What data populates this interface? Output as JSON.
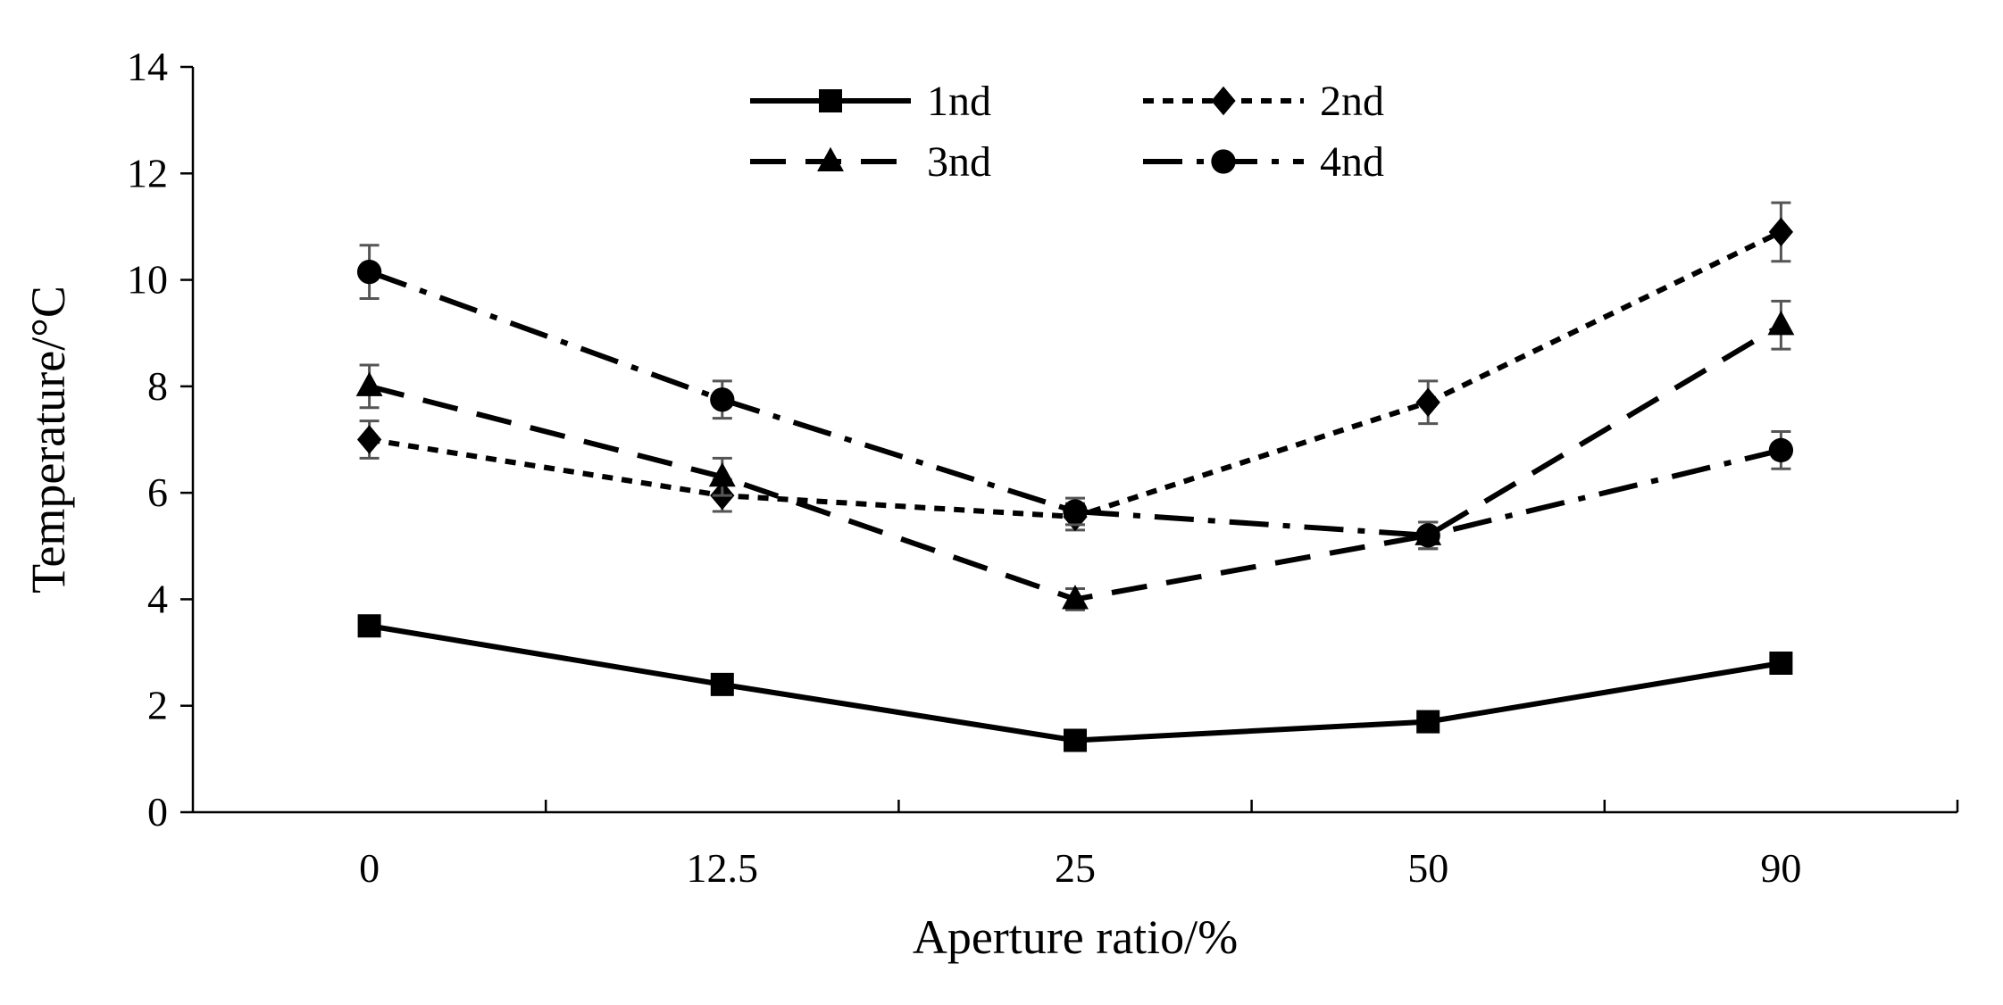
{
  "chart_data": {
    "type": "line",
    "categories": [
      "0",
      "12.5",
      "25",
      "50",
      "90"
    ],
    "xlabel": "Aperture ratio/%",
    "ylabel": "Temperature/°C",
    "ylim": [
      0,
      14
    ],
    "yticks": [
      0,
      2,
      4,
      6,
      8,
      10,
      12,
      14
    ],
    "grid": false,
    "legend_position": "top-center",
    "series": [
      {
        "name": "1nd",
        "values": [
          3.5,
          2.4,
          1.35,
          1.7,
          2.8
        ],
        "errors": [
          0,
          0,
          0,
          0,
          0
        ],
        "marker": "square",
        "dash": "solid",
        "color": "#000000"
      },
      {
        "name": "2nd",
        "values": [
          7.0,
          5.95,
          5.55,
          7.7,
          10.9
        ],
        "errors": [
          0.35,
          0.3,
          0.25,
          0.4,
          0.55
        ],
        "marker": "diamond",
        "dash": "dotted",
        "color": "#000000"
      },
      {
        "name": "3nd",
        "values": [
          8.0,
          6.3,
          4.0,
          5.2,
          9.15
        ],
        "errors": [
          0.4,
          0.35,
          0.2,
          0.25,
          0.45
        ],
        "marker": "triangle",
        "dash": "dashed",
        "color": "#000000"
      },
      {
        "name": "4nd",
        "values": [
          10.15,
          7.75,
          5.65,
          5.2,
          6.8
        ],
        "errors": [
          0.5,
          0.35,
          0.25,
          0.25,
          0.35
        ],
        "marker": "circle",
        "dash": "dashdot",
        "color": "#000000"
      }
    ]
  }
}
